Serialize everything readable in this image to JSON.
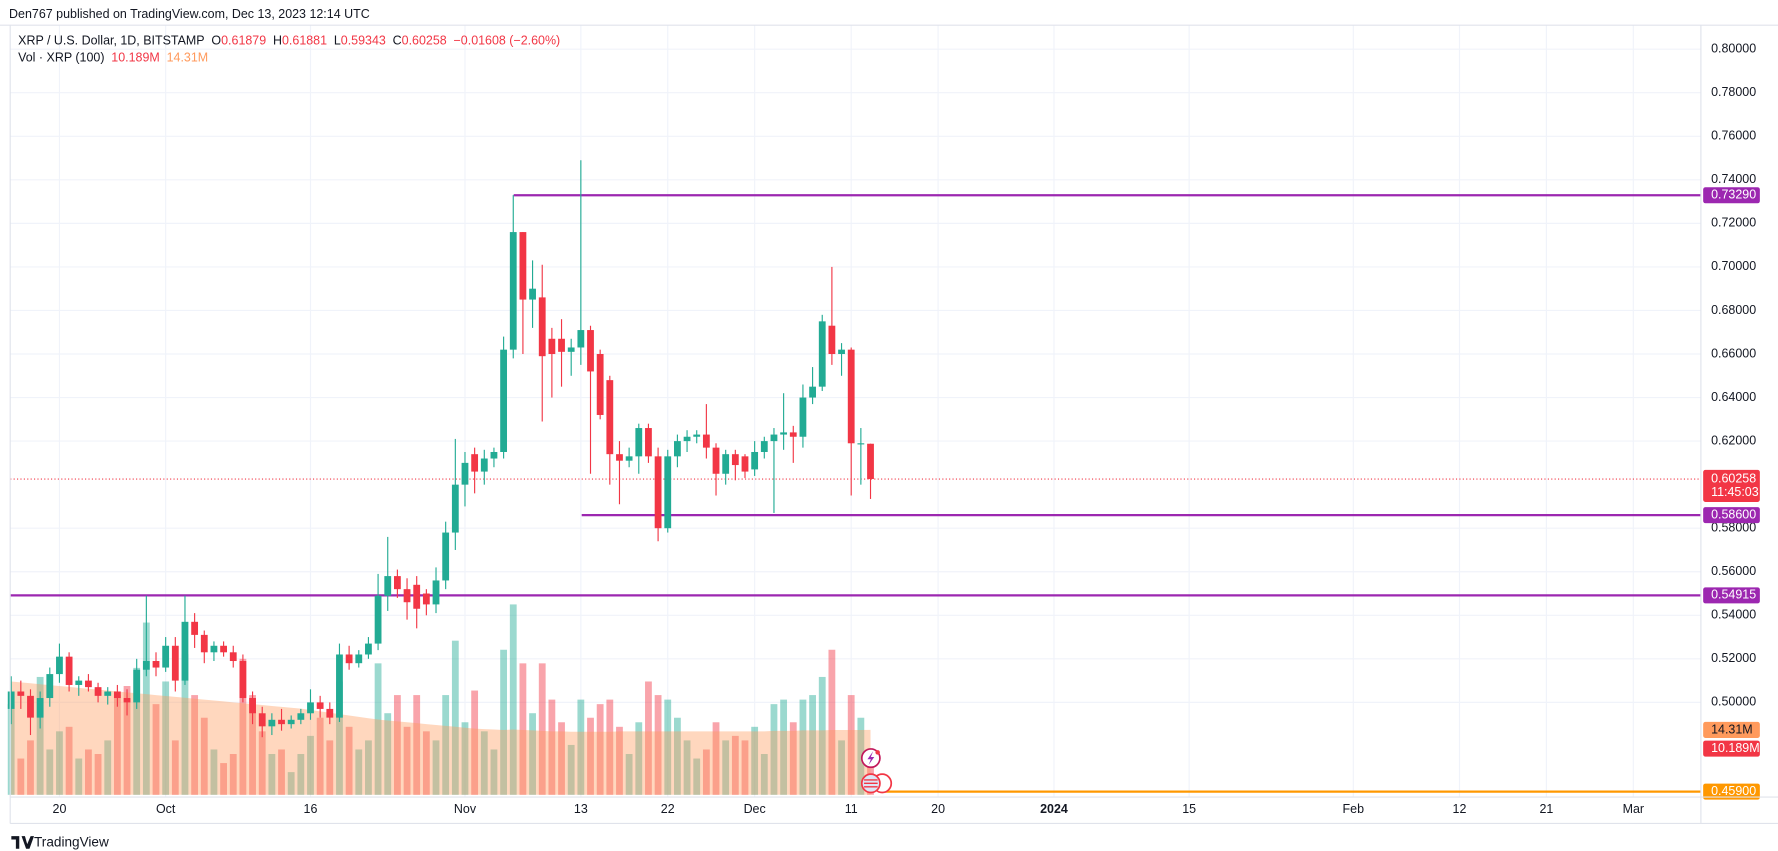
{
  "header": {
    "text": "Den767 published on TradingView.com, Dec 13, 2023 12:14 UTC"
  },
  "footer": {
    "text": "TradingView"
  },
  "chart_data": {
    "type": "candlestick",
    "title": "XRP / U.S. Dollar, 1D, BITSTAMP",
    "ohlc_legend": [
      {
        "label": "O",
        "value": 0.61879
      },
      {
        "label": "H",
        "value": 0.61881
      },
      {
        "label": "L",
        "value": 0.59343
      },
      {
        "label": "C",
        "value": 0.60258
      }
    ],
    "change": "−0.01608 (−2.60%)",
    "up_color": "#22ab94",
    "down_color": "#f23645",
    "candles": {
      "open": [
        0.497,
        0.505,
        0.503,
        0.493,
        0.502,
        0.513,
        0.521,
        0.508,
        0.51,
        0.507,
        0.503,
        0.505,
        0.502,
        0.5,
        0.515,
        0.519,
        0.516,
        0.526,
        0.51,
        0.537,
        0.531,
        0.523,
        0.526,
        0.523,
        0.519,
        0.502,
        0.495,
        0.489,
        0.492,
        0.49,
        0.492,
        0.495,
        0.5,
        0.497,
        0.493,
        0.522,
        0.518,
        0.522,
        0.527,
        0.549,
        0.558,
        0.552,
        0.554,
        0.55,
        0.545,
        0.556,
        0.578,
        0.6,
        0.614,
        0.606,
        0.612,
        0.615,
        0.662,
        0.716,
        0.685,
        0.686,
        0.667,
        0.667,
        0.661,
        0.663,
        0.671,
        0.66,
        0.648,
        0.614,
        0.611,
        0.613,
        0.626,
        0.613,
        0.58,
        0.613,
        0.62,
        0.622,
        0.623,
        0.617,
        0.605,
        0.614,
        0.613,
        0.607,
        0.615,
        0.62,
        0.623,
        0.624,
        0.622,
        0.64,
        0.645,
        0.673,
        0.66,
        0.662,
        0.619,
        0.61879
      ],
      "high": [
        0.512,
        0.51,
        0.506,
        0.505,
        0.516,
        0.527,
        0.523,
        0.512,
        0.513,
        0.509,
        0.507,
        0.508,
        0.506,
        0.52,
        0.549,
        0.523,
        0.53,
        0.53,
        0.549,
        0.541,
        0.533,
        0.528,
        0.528,
        0.526,
        0.522,
        0.505,
        0.498,
        0.495,
        0.497,
        0.494,
        0.497,
        0.506,
        0.503,
        0.5,
        0.527,
        0.526,
        0.524,
        0.53,
        0.559,
        0.576,
        0.561,
        0.557,
        0.558,
        0.552,
        0.562,
        0.583,
        0.621,
        0.615,
        0.617,
        0.616,
        0.617,
        0.668,
        0.733,
        0.716,
        0.703,
        0.701,
        0.672,
        0.676,
        0.667,
        0.749,
        0.673,
        0.662,
        0.65,
        0.62,
        0.617,
        0.628,
        0.628,
        0.617,
        0.616,
        0.623,
        0.625,
        0.625,
        0.637,
        0.619,
        0.616,
        0.616,
        0.614,
        0.62,
        0.622,
        0.626,
        0.642,
        0.627,
        0.646,
        0.654,
        0.678,
        0.7,
        0.665,
        0.663,
        0.626,
        0.61881
      ],
      "low": [
        0.49,
        0.497,
        0.485,
        0.488,
        0.498,
        0.509,
        0.505,
        0.503,
        0.505,
        0.5,
        0.499,
        0.498,
        0.494,
        0.497,
        0.512,
        0.512,
        0.514,
        0.505,
        0.508,
        0.525,
        0.518,
        0.519,
        0.521,
        0.516,
        0.5,
        0.49,
        0.484,
        0.485,
        0.487,
        0.488,
        0.49,
        0.492,
        0.493,
        0.49,
        0.491,
        0.515,
        0.516,
        0.52,
        0.524,
        0.542,
        0.548,
        0.538,
        0.534,
        0.54,
        0.541,
        0.552,
        0.57,
        0.59,
        0.596,
        0.6,
        0.608,
        0.612,
        0.658,
        0.66,
        0.672,
        0.629,
        0.64,
        0.645,
        0.65,
        0.655,
        0.605,
        0.63,
        0.6,
        0.591,
        0.608,
        0.605,
        0.61,
        0.574,
        0.578,
        0.608,
        0.615,
        0.619,
        0.612,
        0.595,
        0.6,
        0.602,
        0.603,
        0.604,
        0.612,
        0.587,
        0.616,
        0.61,
        0.617,
        0.637,
        0.643,
        0.655,
        0.65,
        0.595,
        0.6,
        0.59343
      ],
      "close": [
        0.505,
        0.503,
        0.493,
        0.502,
        0.513,
        0.521,
        0.508,
        0.51,
        0.507,
        0.503,
        0.505,
        0.502,
        0.5,
        0.515,
        0.519,
        0.516,
        0.526,
        0.51,
        0.537,
        0.531,
        0.523,
        0.526,
        0.523,
        0.519,
        0.502,
        0.495,
        0.489,
        0.492,
        0.49,
        0.492,
        0.495,
        0.5,
        0.497,
        0.493,
        0.522,
        0.518,
        0.522,
        0.527,
        0.549,
        0.558,
        0.552,
        0.546,
        0.543,
        0.545,
        0.556,
        0.578,
        0.6,
        0.61,
        0.606,
        0.612,
        0.615,
        0.662,
        0.716,
        0.685,
        0.69,
        0.659,
        0.66,
        0.661,
        0.663,
        0.671,
        0.652,
        0.632,
        0.614,
        0.611,
        0.613,
        0.626,
        0.613,
        0.58,
        0.613,
        0.62,
        0.622,
        0.623,
        0.617,
        0.605,
        0.614,
        0.609,
        0.606,
        0.615,
        0.62,
        0.623,
        0.624,
        0.622,
        0.64,
        0.645,
        0.675,
        0.66,
        0.662,
        0.619,
        0.619,
        0.60258
      ]
    },
    "volume": {
      "name": "Vol · XRP (100)",
      "last_label": "10.189M",
      "values": [
        20,
        8,
        12,
        26,
        10,
        14,
        15,
        8,
        10,
        9,
        12,
        22,
        24,
        28,
        38,
        20,
        25,
        12,
        31,
        22,
        17,
        10,
        7,
        9,
        30,
        22,
        14,
        9,
        10,
        5,
        9,
        13,
        17,
        12,
        25,
        15,
        10,
        12,
        29,
        18,
        22,
        15,
        22,
        14,
        12,
        22,
        34,
        16,
        23,
        14,
        10,
        32,
        42,
        29,
        18,
        29,
        21,
        16,
        11,
        21,
        17,
        20,
        21,
        15,
        9,
        16,
        25,
        22,
        21,
        17,
        12,
        8,
        10,
        16,
        12,
        13,
        12,
        15,
        9,
        20,
        21,
        16,
        21,
        22,
        26,
        32,
        12,
        22,
        17,
        10.189
      ]
    },
    "volume_ma": {
      "color": "#ff9a5c",
      "last_label": "14.31M",
      "values": [
        25.0,
        24.8,
        24.6,
        24.4,
        24.2,
        24.0,
        23.8,
        23.6,
        23.4,
        23.2,
        23.0,
        22.8,
        22.6,
        22.4,
        22.2,
        22.0,
        21.8,
        21.6,
        21.4,
        21.2,
        21.0,
        20.8,
        20.6,
        20.4,
        20.2,
        20.0,
        19.8,
        19.6,
        19.4,
        19.2,
        19.0,
        18.7,
        18.4,
        18.1,
        17.8,
        17.5,
        17.2,
        16.9,
        16.6,
        16.4,
        16.2,
        16.0,
        15.8,
        15.6,
        15.4,
        15.2,
        15.0,
        14.8,
        14.6,
        14.5,
        14.4,
        14.3,
        14.4,
        14.3,
        14.2,
        14.1,
        14.0,
        14.0,
        13.9,
        13.9,
        13.9,
        13.9,
        13.9,
        14.0,
        14.0,
        14.0,
        14.0,
        14.0,
        14.0,
        14.0,
        14.0,
        14.0,
        14.0,
        14.0,
        14.0,
        14.0,
        14.0,
        14.0,
        14.0,
        14.1,
        14.1,
        14.1,
        14.2,
        14.2,
        14.2,
        14.3,
        14.3,
        14.3,
        14.3,
        14.31
      ]
    },
    "levels": [
      {
        "value": 0.7329,
        "label": "0.73290",
        "color": "#9c27b0"
      },
      {
        "value": 0.586,
        "label": "0.58600",
        "color": "#9c27b0"
      },
      {
        "value": 0.54915,
        "label": "0.54915",
        "color": "#9c27b0"
      },
      {
        "value": 0.459,
        "label": "0.45900",
        "color": "#ff9800"
      }
    ],
    "last_price": {
      "value": 0.60258,
      "countdown": "11:45:03"
    },
    "ylim": [
      0.4565,
      0.811
    ],
    "yticks": [
      {
        "value": 0.5,
        "label": "0.50000"
      },
      {
        "value": 0.52,
        "label": "0.52000"
      },
      {
        "value": 0.54,
        "label": "0.54000"
      },
      {
        "value": 0.56,
        "label": "0.56000"
      },
      {
        "value": 0.58,
        "label": "0.58000"
      },
      {
        "value": 0.62,
        "label": "0.62000"
      },
      {
        "value": 0.64,
        "label": "0.64000"
      },
      {
        "value": 0.66,
        "label": "0.66000"
      },
      {
        "value": 0.68,
        "label": "0.68000"
      },
      {
        "value": 0.7,
        "label": "0.70000"
      },
      {
        "value": 0.72,
        "label": "0.72000"
      },
      {
        "value": 0.74,
        "label": "0.74000"
      },
      {
        "value": 0.76,
        "label": "0.76000"
      },
      {
        "value": 0.78,
        "label": "0.78000"
      },
      {
        "value": 0.8,
        "label": "0.80000"
      }
    ],
    "xlim": [
      -0.1,
      175
    ],
    "xticks": [
      {
        "value": 5,
        "label": "20"
      },
      {
        "value": 16,
        "label": "Oct"
      },
      {
        "value": 31,
        "label": "16"
      },
      {
        "value": 47,
        "label": "Nov"
      },
      {
        "value": 59,
        "label": "13"
      },
      {
        "value": 68,
        "label": "22"
      },
      {
        "value": 77,
        "label": "Dec"
      },
      {
        "value": 87,
        "label": "11"
      },
      {
        "value": 96,
        "label": "20"
      },
      {
        "value": 108,
        "label": "2024"
      },
      {
        "value": 122,
        "label": "15"
      },
      {
        "value": 139,
        "label": "Feb"
      },
      {
        "value": 150,
        "label": "12"
      },
      {
        "value": 159,
        "label": "21"
      },
      {
        "value": 168,
        "label": "Mar"
      }
    ],
    "grid": true
  }
}
